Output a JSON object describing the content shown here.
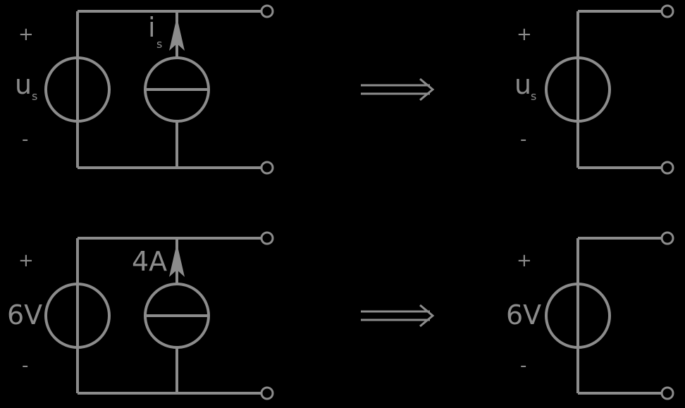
{
  "colors": {
    "background": "#000000",
    "stroke": "#8c8c8c"
  },
  "circuits": [
    {
      "id": "top-left",
      "plus": "+",
      "minus": "-",
      "voltage": "u",
      "voltage_sub": "s",
      "current": "i",
      "current_sub": "s"
    },
    {
      "id": "top-right",
      "plus": "+",
      "minus": "-",
      "voltage": "u",
      "voltage_sub": "s"
    },
    {
      "id": "bottom-left",
      "plus": "+",
      "minus": "-",
      "voltage": "6V",
      "current": "4A"
    },
    {
      "id": "bottom-right",
      "plus": "+",
      "minus": "-",
      "voltage": "6V"
    }
  ],
  "arrows": [
    {
      "icon": "double-arrow-right-icon"
    },
    {
      "icon": "double-arrow-right-icon"
    }
  ]
}
